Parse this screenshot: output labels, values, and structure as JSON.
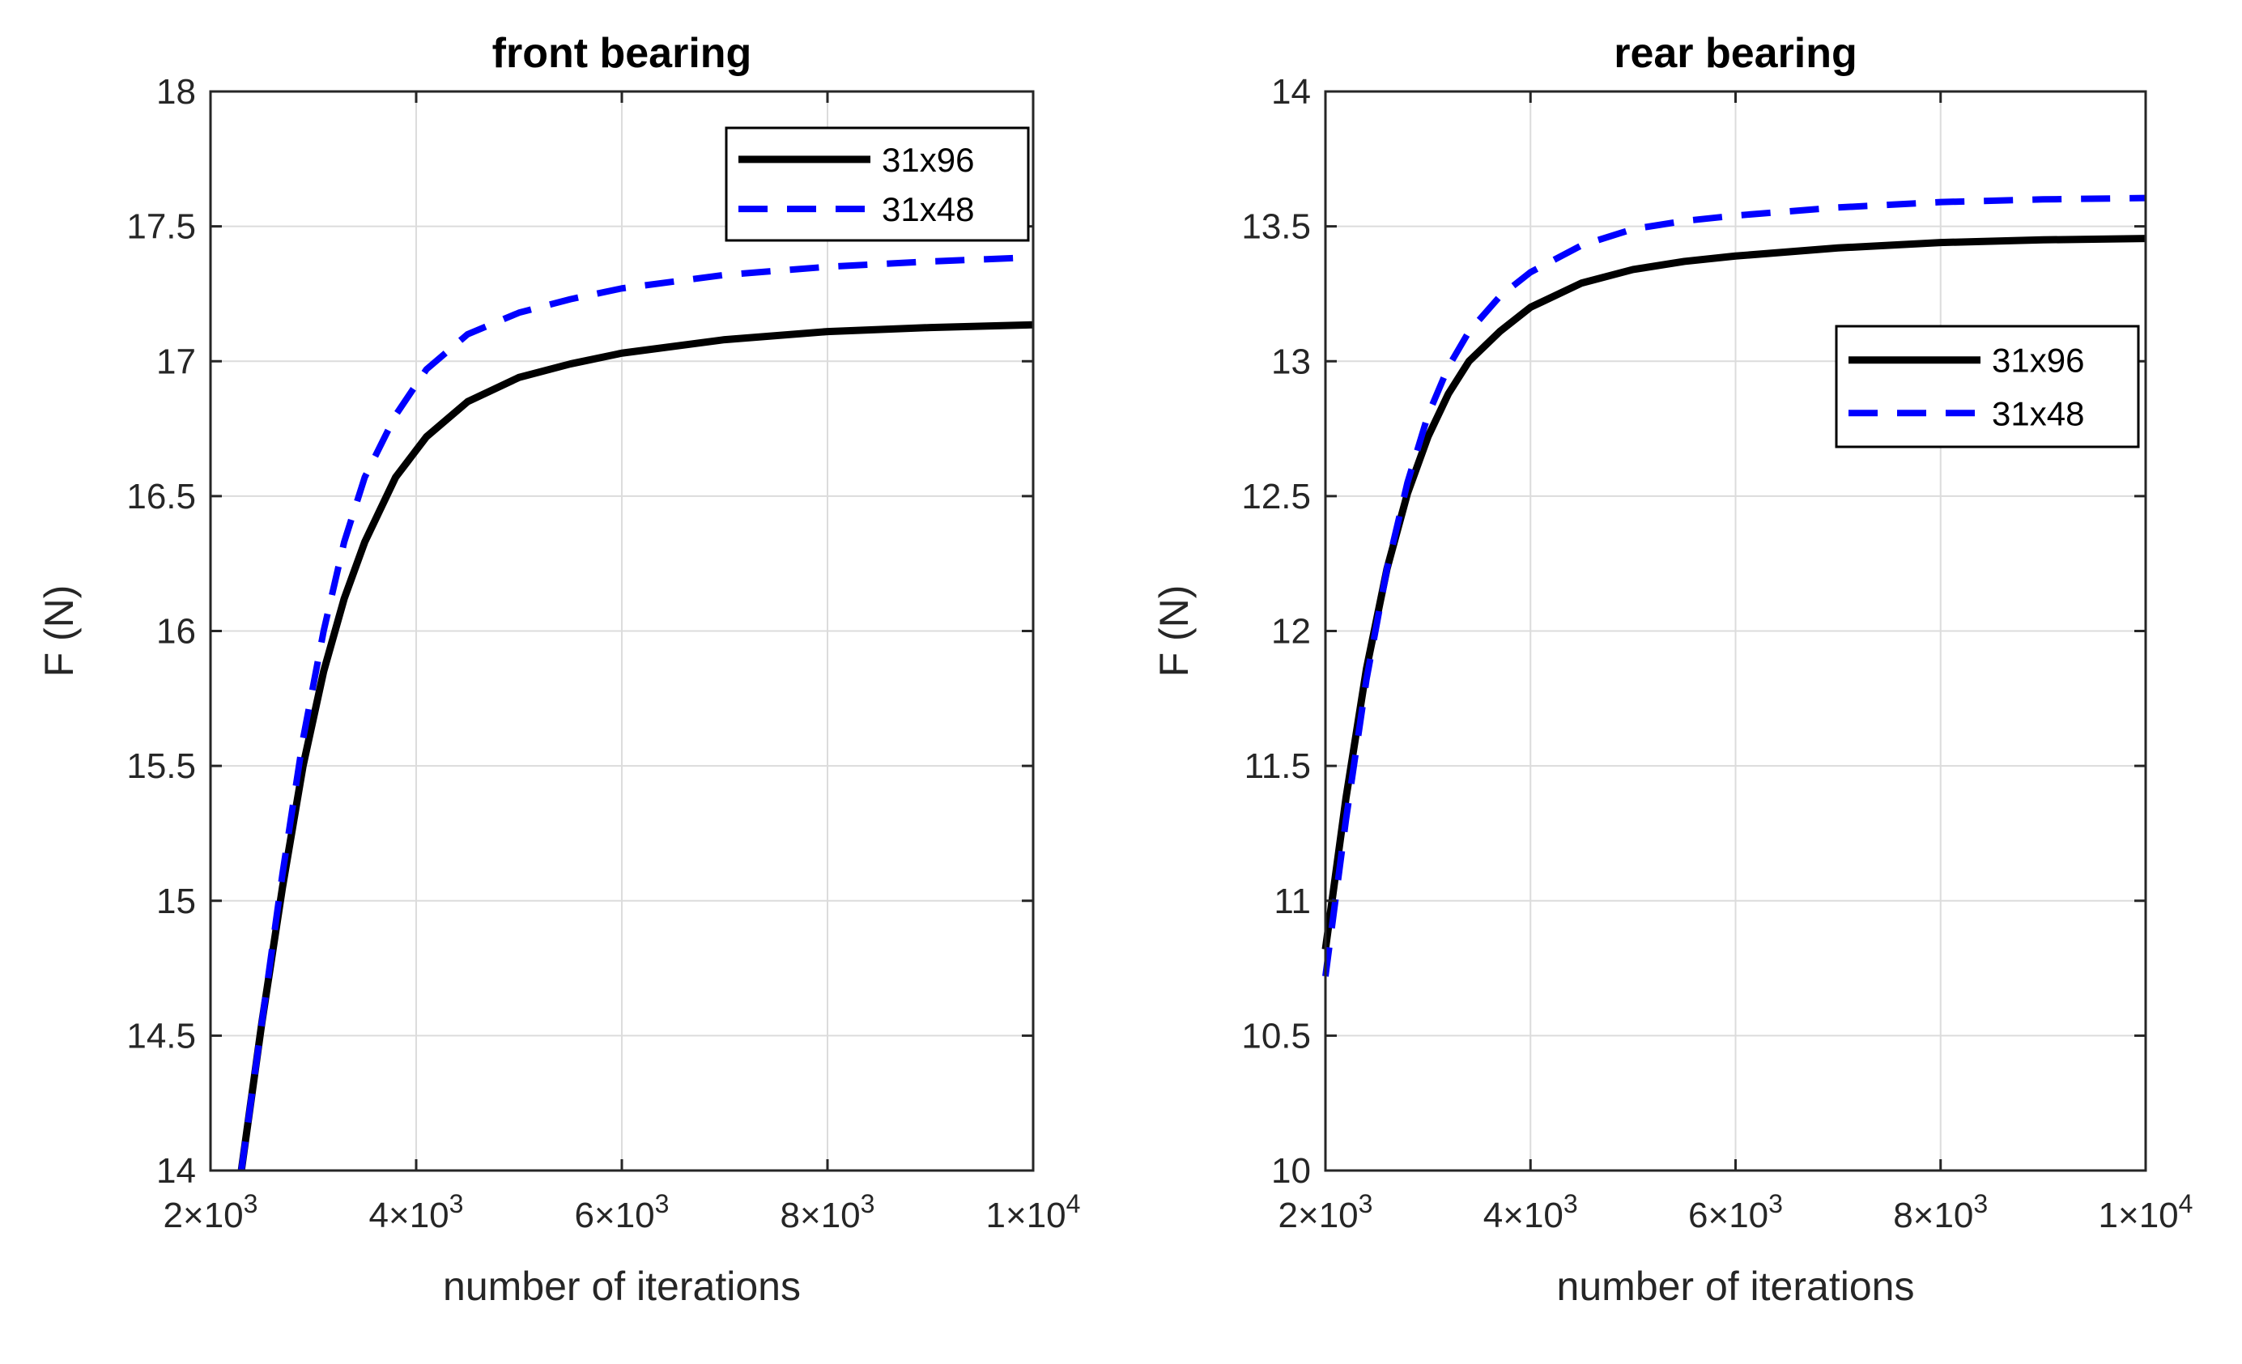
{
  "colors": {
    "series_solid": "#000000",
    "series_dashed": "#0000ff",
    "grid": "#dcdcdc",
    "axis": "#262626"
  },
  "chart_data": [
    {
      "type": "line",
      "title": "front bearing",
      "xlabel": "number of iterations",
      "ylabel": "F (N)",
      "xlim": [
        2000,
        10000
      ],
      "ylim": [
        14,
        18
      ],
      "xticks": [
        2000,
        4000,
        6000,
        8000,
        10000
      ],
      "xtick_labels": [
        {
          "mant": "2",
          "exp": "3"
        },
        {
          "mant": "4",
          "exp": "3"
        },
        {
          "mant": "6",
          "exp": "3"
        },
        {
          "mant": "8",
          "exp": "3"
        },
        {
          "mant": "1",
          "exp": "4"
        }
      ],
      "yticks": [
        14,
        14.5,
        15,
        15.5,
        16,
        16.5,
        17,
        17.5,
        18
      ],
      "ytick_labels": [
        "14",
        "14.5",
        "15",
        "15.5",
        "16",
        "16.5",
        "17",
        "17.5",
        "18"
      ],
      "grid": true,
      "legend_location": "top-right",
      "series": [
        {
          "name": "31x96",
          "style": "solid",
          "color": "#000000",
          "x": [
            2300,
            2500,
            2700,
            2900,
            3100,
            3300,
            3500,
            3800,
            4100,
            4500,
            5000,
            5500,
            6000,
            7000,
            8000,
            9000,
            10000
          ],
          "y": [
            14.0,
            14.55,
            15.05,
            15.5,
            15.85,
            16.12,
            16.33,
            16.57,
            16.72,
            16.85,
            16.94,
            16.99,
            17.03,
            17.08,
            17.11,
            17.125,
            17.135
          ]
        },
        {
          "name": "31x48",
          "style": "dashed",
          "color": "#0000ff",
          "x": [
            2300,
            2500,
            2700,
            2900,
            3100,
            3300,
            3500,
            3800,
            4100,
            4500,
            5000,
            5500,
            6000,
            7000,
            8000,
            9000,
            10000
          ],
          "y": [
            14.0,
            14.55,
            15.1,
            15.6,
            16.0,
            16.33,
            16.57,
            16.8,
            16.97,
            17.1,
            17.18,
            17.23,
            17.27,
            17.32,
            17.35,
            17.37,
            17.385
          ]
        }
      ]
    },
    {
      "type": "line",
      "title": "rear bearing",
      "xlabel": "number of iterations",
      "ylabel": "F (N)",
      "xlim": [
        2000,
        10000
      ],
      "ylim": [
        10,
        14
      ],
      "xticks": [
        2000,
        4000,
        6000,
        8000,
        10000
      ],
      "xtick_labels": [
        {
          "mant": "2",
          "exp": "3"
        },
        {
          "mant": "4",
          "exp": "3"
        },
        {
          "mant": "6",
          "exp": "3"
        },
        {
          "mant": "8",
          "exp": "3"
        },
        {
          "mant": "1",
          "exp": "4"
        }
      ],
      "yticks": [
        10,
        10.5,
        11,
        11.5,
        12,
        12.5,
        13,
        13.5,
        14
      ],
      "ytick_labels": [
        "10",
        "10.5",
        "11",
        "11.5",
        "12",
        "12.5",
        "13",
        "13.5",
        "14"
      ],
      "grid": true,
      "legend_location": "middle-right",
      "series": [
        {
          "name": "31x96",
          "style": "solid",
          "color": "#000000",
          "x": [
            2000,
            2200,
            2400,
            2600,
            2800,
            3000,
            3200,
            3400,
            3700,
            4000,
            4500,
            5000,
            5500,
            6000,
            7000,
            8000,
            9000,
            10000
          ],
          "y": [
            10.82,
            11.38,
            11.86,
            12.23,
            12.51,
            12.72,
            12.88,
            13.0,
            13.11,
            13.2,
            13.29,
            13.34,
            13.37,
            13.39,
            13.42,
            13.44,
            13.45,
            13.455
          ]
        },
        {
          "name": "31x48",
          "style": "dashed",
          "color": "#0000ff",
          "x": [
            2000,
            2200,
            2400,
            2600,
            2800,
            3000,
            3200,
            3400,
            3700,
            4000,
            4500,
            5000,
            5500,
            6000,
            7000,
            8000,
            9000,
            10000
          ],
          "y": [
            10.72,
            11.3,
            11.82,
            12.23,
            12.55,
            12.8,
            12.98,
            13.11,
            13.24,
            13.33,
            13.43,
            13.49,
            13.52,
            13.54,
            13.57,
            13.59,
            13.6,
            13.605
          ]
        }
      ]
    }
  ]
}
